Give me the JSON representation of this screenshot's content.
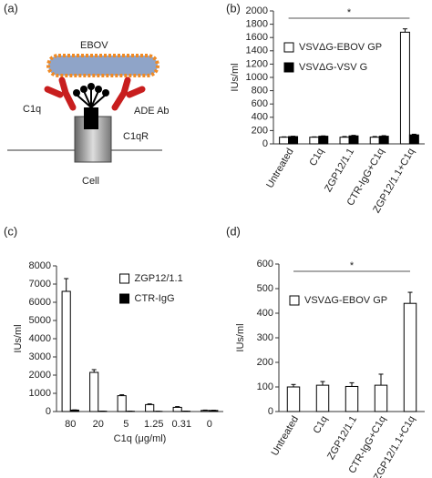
{
  "diagram": {
    "label": "(a)",
    "virus": "EBOV",
    "antibody": "ADE Ab",
    "complement": "C1q",
    "receptor": "C1qR",
    "cell": "Cell"
  },
  "chart_data": [
    {
      "type": "bar",
      "label": "(b)",
      "y_label": "IUs/ml",
      "significance": "*",
      "legend": "upper-left",
      "categories": [
        "Untreated",
        "C1q",
        "ZGP12/1.1",
        "CTR-IgG+C1q",
        "ZGP12/1.1+C1q"
      ],
      "series": [
        {
          "name": "VSVΔG-EBOV GP",
          "color": "#ffffff",
          "values": [
            100,
            100,
            100,
            100,
            1680
          ],
          "errors": [
            5,
            5,
            10,
            10,
            50
          ]
        },
        {
          "name": "VSVΔG-VSV G",
          "color": "#000000",
          "values": [
            110,
            115,
            120,
            115,
            135
          ],
          "errors": [
            5,
            5,
            8,
            8,
            10
          ]
        }
      ],
      "ylim": [
        0,
        2000
      ],
      "yticks": [
        0,
        200,
        400,
        600,
        800,
        1000,
        1200,
        1400,
        1600,
        1800,
        2000
      ]
    },
    {
      "type": "bar",
      "label": "(c)",
      "y_label": "IUs/ml",
      "x_label": "C1q  (μg/ml)",
      "legend": "upper-right",
      "categories": [
        "80",
        "20",
        "5",
        "1.25",
        "0.31",
        "0"
      ],
      "series": [
        {
          "name": "ZGP12/1.1",
          "color": "#ffffff",
          "values": [
            6600,
            2150,
            870,
            380,
            230,
            60
          ],
          "errors": [
            700,
            150,
            50,
            40,
            40,
            20
          ]
        },
        {
          "name": "CTR-IgG",
          "color": "#000000",
          "values": [
            80,
            20,
            15,
            10,
            20,
            60
          ],
          "errors": [
            10,
            5,
            5,
            5,
            5,
            10
          ]
        }
      ],
      "ylim": [
        0,
        8000
      ],
      "yticks": [
        0,
        1000,
        2000,
        3000,
        4000,
        5000,
        6000,
        7000,
        8000
      ]
    },
    {
      "type": "bar",
      "label": "(d)",
      "y_label": "IUs/ml",
      "significance": "*",
      "legend": "upper-left",
      "categories": [
        "Untreated",
        "C1q",
        "ZGP12/1.1",
        "CTR-IgG+C1q",
        "ZGP12/1.1+C1q"
      ],
      "series": [
        {
          "name": "VSVΔG-EBOV GP",
          "color": "#ffffff",
          "values": [
            100,
            107,
            102,
            107,
            440
          ],
          "errors": [
            10,
            15,
            15,
            45,
            45
          ]
        }
      ],
      "ylim": [
        0,
        600
      ],
      "yticks": [
        0,
        100,
        200,
        300,
        400,
        500,
        600
      ]
    }
  ]
}
